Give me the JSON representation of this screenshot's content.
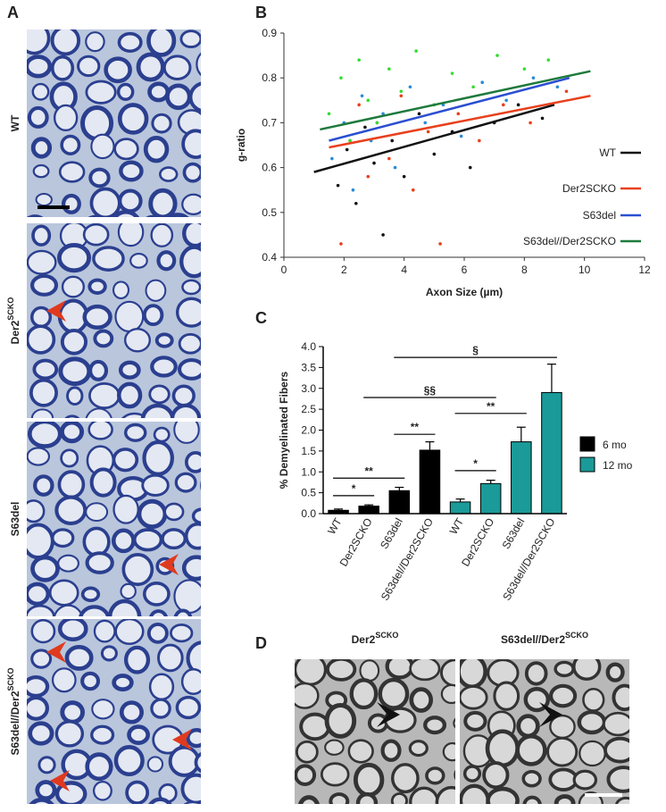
{
  "panels": {
    "a": {
      "letter": "A",
      "images": [
        {
          "base": "WT",
          "sup": null
        },
        {
          "base": "Der2",
          "sup": "SCKO"
        },
        {
          "base": "S63del",
          "sup": null
        },
        {
          "base": "S63del//Der2",
          "sup": "SCKO"
        }
      ]
    },
    "b": {
      "letter": "B"
    },
    "c": {
      "letter": "C"
    },
    "d": {
      "letter": "D",
      "images": [
        {
          "base": "Der2",
          "sup": "SCKO"
        },
        {
          "base": "S63del//Der2",
          "sup": "SCKO"
        }
      ]
    }
  },
  "chart_data": [
    {
      "type": "scatter",
      "xlabel": "Axon Size (µm)",
      "ylabel": "g-ratio",
      "xlim": [
        0,
        12
      ],
      "xticks": [
        0,
        2,
        4,
        6,
        8,
        10,
        12
      ],
      "ylim": [
        0.4,
        0.9
      ],
      "yticks": [
        0.4,
        0.5,
        0.6,
        0.7,
        0.8,
        0.9
      ],
      "series": [
        {
          "name": "WT",
          "color": "#111111",
          "fit_color": "#111111",
          "x": [
            1.8,
            2.1,
            2.4,
            2.7,
            3.0,
            3.3,
            3.6,
            4.0,
            4.5,
            5.0,
            5.6,
            6.2,
            7.0,
            7.8,
            8.6
          ],
          "values": [
            0.56,
            0.64,
            0.52,
            0.69,
            0.61,
            0.45,
            0.66,
            0.58,
            0.72,
            0.63,
            0.68,
            0.6,
            0.7,
            0.74,
            0.71
          ],
          "fit": {
            "x": [
              1,
              9
            ],
            "y": [
              0.59,
              0.74
            ]
          }
        },
        {
          "name": "Der2SCKO",
          "color": "#e8401c",
          "fit_color": "#e8401c",
          "x": [
            1.9,
            2.2,
            2.5,
            2.8,
            3.1,
            3.5,
            3.9,
            4.3,
            4.8,
            5.2,
            5.8,
            6.5,
            7.3,
            8.2,
            9.4
          ],
          "values": [
            0.43,
            0.66,
            0.74,
            0.58,
            0.7,
            0.62,
            0.76,
            0.55,
            0.68,
            0.43,
            0.72,
            0.66,
            0.74,
            0.7,
            0.77
          ],
          "fit": {
            "x": [
              1.5,
              10.2
            ],
            "y": [
              0.645,
              0.76
            ]
          }
        },
        {
          "name": "S63del",
          "color": "#2a8bd7",
          "fit_color": "#2a4fd0",
          "x": [
            1.6,
            2.0,
            2.3,
            2.6,
            2.9,
            3.3,
            3.7,
            4.2,
            4.7,
            5.3,
            5.9,
            6.6,
            7.4,
            8.3,
            9.1
          ],
          "values": [
            0.62,
            0.7,
            0.55,
            0.76,
            0.66,
            0.72,
            0.6,
            0.78,
            0.7,
            0.74,
            0.67,
            0.79,
            0.75,
            0.8,
            0.78
          ],
          "fit": {
            "x": [
              1.5,
              9.5
            ],
            "y": [
              0.66,
              0.8
            ]
          }
        },
        {
          "name": "S63del//Der2SCKO",
          "color": "#33dd33",
          "fit_color": "#1e7a3c",
          "x": [
            1.5,
            1.9,
            2.2,
            2.5,
            2.8,
            3.1,
            3.5,
            3.9,
            4.4,
            5.0,
            5.6,
            6.3,
            7.1,
            8.0,
            8.8
          ],
          "values": [
            0.72,
            0.8,
            0.66,
            0.84,
            0.75,
            0.7,
            0.82,
            0.77,
            0.86,
            0.74,
            0.81,
            0.78,
            0.85,
            0.82,
            0.84
          ],
          "fit": {
            "x": [
              1.2,
              10.2
            ],
            "y": [
              0.685,
              0.815
            ]
          }
        }
      ]
    },
    {
      "type": "bar",
      "ylabel": "% Demyelinated Fibers",
      "categories": [
        "WT",
        "Der2SCKO",
        "S63del",
        "S63del//Der2SCKO",
        "WT",
        "Der2SCKO",
        "S63del",
        "S63del//Der2SCKO"
      ],
      "ylim": [
        0,
        4
      ],
      "yticks": [
        {
          "value": 0,
          "label": "0.0"
        },
        {
          "value": 0.5,
          "label": "0.5"
        },
        {
          "value": 1,
          "label": "1.0"
        },
        {
          "value": 1.5,
          "label": "1.5"
        },
        {
          "value": 2,
          "label": "2.0"
        },
        {
          "value": 2.5,
          "label": "2.5"
        },
        {
          "value": 3,
          "label": "3.0"
        },
        {
          "value": 3.5,
          "label": "3.5"
        },
        {
          "value": 4,
          "label": "4.0"
        }
      ],
      "series": [
        {
          "name": "6 mo",
          "color": "#000000",
          "values": [
            0.08,
            0.18,
            0.55,
            1.52,
            null,
            null,
            null,
            null
          ],
          "errors": [
            0.03,
            0.03,
            0.08,
            0.2,
            null,
            null,
            null,
            null
          ]
        },
        {
          "name": "12 mo",
          "color": "#1a9a98",
          "values": [
            null,
            null,
            null,
            null,
            0.28,
            0.72,
            1.72,
            2.9
          ],
          "errors": [
            null,
            null,
            null,
            null,
            0.07,
            0.08,
            0.35,
            0.68
          ]
        }
      ],
      "annotations": [
        {
          "text": "*",
          "from": 0,
          "to": 1,
          "y": 0.43
        },
        {
          "text": "**",
          "from": 0,
          "to": 2,
          "y": 0.85
        },
        {
          "text": "**",
          "from": 2,
          "to": 3,
          "y": 1.9
        },
        {
          "text": "*",
          "from": 4,
          "to": 5,
          "y": 1.03
        },
        {
          "text": "**",
          "from": 4,
          "to": 6,
          "y": 2.4
        },
        {
          "text": "§§",
          "from": 1,
          "to": 5,
          "y": 2.78
        },
        {
          "text": "§",
          "from": 2,
          "to": 7,
          "y": 3.74
        }
      ]
    }
  ]
}
